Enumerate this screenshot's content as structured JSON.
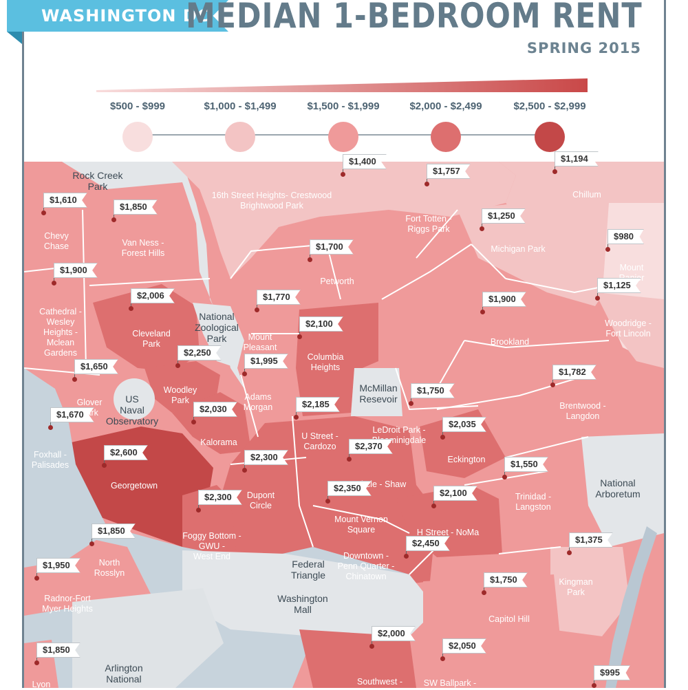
{
  "header": {
    "banner": "WASHINGTON DC",
    "title": "MEDIAN 1-BEDROOM RENT",
    "subtitle": "SPRING 2015"
  },
  "legend": [
    {
      "label": "$500 - $999",
      "color": "#f8dede"
    },
    {
      "label": "$1,000 - $1,499",
      "color": "#f3c4c4"
    },
    {
      "label": "$1,500 - $1,999",
      "color": "#ef9a9a"
    },
    {
      "label": "$2,000 - $2,499",
      "color": "#dd6f6f"
    },
    {
      "label": "$2,500 - $2,999",
      "color": "#c34848"
    }
  ],
  "landmarks": [
    {
      "name": "Rock Creek\nPark"
    },
    {
      "name": "National\nZoological\nPark"
    },
    {
      "name": "US\nNaval\nObservatory"
    },
    {
      "name": "McMillan\nResevoir"
    },
    {
      "name": "National\nArboretum"
    },
    {
      "name": "Washington\nMall"
    },
    {
      "name": "Federal\nTriangle"
    },
    {
      "name": "Arlington\nNational"
    }
  ],
  "neighborhoods": [
    {
      "name": "16th Street Heights- Crestwood\nBrightwood Park",
      "rent": "$1,400"
    },
    {
      "name": "Chillum",
      "rent": "$1,194"
    },
    {
      "name": "Fort Totten -\nRiggs Park",
      "rent": "$1,757"
    },
    {
      "name": "Chevy\nChase",
      "rent": "$1,610"
    },
    {
      "name": "Van Ness -\nForest Hills",
      "rent": "$1,850"
    },
    {
      "name": "Michigan  Park",
      "rent": "$1,250"
    },
    {
      "name": "Mount\nRanier",
      "rent": "$980"
    },
    {
      "name": "Petworth",
      "rent": "$1,700"
    },
    {
      "name": "Cathedral -\nWesley\nHeights -\nMclean\nGardens",
      "rent": "$1,900"
    },
    {
      "name": "Woodridge -\nFort Lincoln",
      "rent": "$1,125"
    },
    {
      "name": "Cleveland\nPark",
      "rent": "$2,006"
    },
    {
      "name": "Mount\nPleasant",
      "rent": "$1,770"
    },
    {
      "name": "Brookland",
      "rent": "$1,900"
    },
    {
      "name": "Columbia\nHeights",
      "rent": "$2,100"
    },
    {
      "name": "Woodley\nPark",
      "rent": "$2,250"
    },
    {
      "name": "Glover\nPark",
      "rent": "$1,650"
    },
    {
      "name": "Adams\nMorgan",
      "rent": "$1,995"
    },
    {
      "name": "Brentwood -\nLangdon",
      "rent": "$1,782"
    },
    {
      "name": "LeDroit Park -\nBloominigdale",
      "rent": "$1,750"
    },
    {
      "name": "Kalorama",
      "rent": "$2,030"
    },
    {
      "name": "U Street -\nCardozo",
      "rent": "$2,185"
    },
    {
      "name": "Foxhall -\nPalisades",
      "rent": "$1,670"
    },
    {
      "name": "Eckington",
      "rent": "$2,035"
    },
    {
      "name": "Logan Circle - Shaw",
      "rent": "$2,370"
    },
    {
      "name": "Georgetown",
      "rent": "$2,600"
    },
    {
      "name": "Dupont\nCircle",
      "rent": "$2,300"
    },
    {
      "name": "Trinidad -\nLangston",
      "rent": "$1,550"
    },
    {
      "name": "Mount Vernon\nSquare",
      "rent": "$2,350"
    },
    {
      "name": "Foggy Bottom -\nGWU -\nWest End",
      "rent": "$2,300"
    },
    {
      "name": "H Street - NoMa",
      "rent": "$2,100"
    },
    {
      "name": "North\nRosslyn",
      "rent": "$1,850"
    },
    {
      "name": "Kingman\nPark",
      "rent": "$1,375"
    },
    {
      "name": "Downtown -\nPenn Quarter -\nChinatown",
      "rent": "$2,450"
    },
    {
      "name": "Radnor-Fort\nMyer Heights",
      "rent": "$1,950"
    },
    {
      "name": "Capitol Hill",
      "rent": "$1,750"
    },
    {
      "name": "Southwest -",
      "rent": "$2,000"
    },
    {
      "name": "SW Ballpark -",
      "rent": "$2,050"
    },
    {
      "name": "Lyon",
      "rent": "$1,850"
    },
    {
      "name": "",
      "rent": "$995"
    }
  ]
}
